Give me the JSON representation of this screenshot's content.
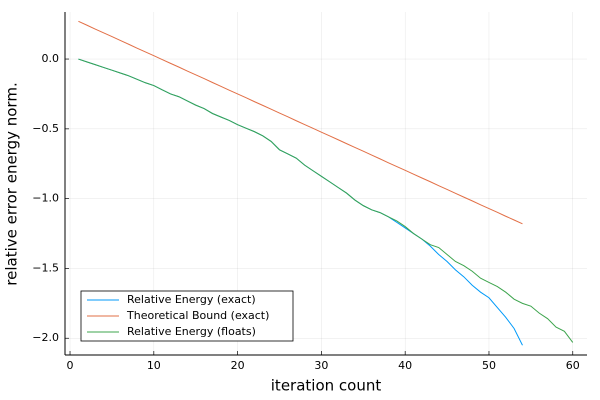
{
  "chart_data": {
    "type": "line",
    "x_label": "iteration count",
    "y_label": "relative error energy norm.",
    "x": [
      1,
      2,
      3,
      4,
      5,
      6,
      7,
      8,
      9,
      10,
      11,
      12,
      13,
      14,
      15,
      16,
      17,
      18,
      19,
      20,
      21,
      22,
      23,
      24,
      25,
      26,
      27,
      28,
      29,
      30,
      31,
      32,
      33,
      34,
      35,
      36,
      37,
      38,
      39,
      40,
      41,
      42,
      43,
      44,
      45,
      46,
      47,
      48,
      49,
      50,
      51,
      52,
      53,
      54,
      55,
      56,
      57,
      58,
      59,
      60
    ],
    "series": [
      {
        "name": "Relative Energy (exact)",
        "color": "#009af9",
        "values": [
          0,
          -0.02,
          -0.04,
          -0.06,
          -0.08,
          -0.1,
          -0.12,
          -0.145,
          -0.17,
          -0.19,
          -0.22,
          -0.25,
          -0.27,
          -0.3,
          -0.33,
          -0.355,
          -0.39,
          -0.415,
          -0.44,
          -0.47,
          -0.495,
          -0.52,
          -0.55,
          -0.59,
          -0.65,
          -0.68,
          -0.71,
          -0.76,
          -0.8,
          -0.84,
          -0.88,
          -0.92,
          -0.96,
          -1.01,
          -1.05,
          -1.08,
          -1.1,
          -1.13,
          -1.17,
          -1.21,
          -1.25,
          -1.29,
          -1.34,
          -1.4,
          -1.45,
          -1.51,
          -1.56,
          -1.62,
          -1.67,
          -1.71,
          -1.78,
          -1.85,
          -1.93,
          -2.05,
          null,
          null,
          null,
          null,
          null,
          null
        ]
      },
      {
        "name": "Theoretical Bound (exact)",
        "color": "#e26f46",
        "values": [
          0.27,
          0.243,
          0.215,
          0.188,
          0.161,
          0.133,
          0.106,
          0.078,
          0.051,
          0.024,
          -0.004,
          -0.031,
          -0.058,
          -0.086,
          -0.113,
          -0.14,
          -0.168,
          -0.195,
          -0.223,
          -0.25,
          -0.277,
          -0.305,
          -0.332,
          -0.359,
          -0.387,
          -0.414,
          -0.442,
          -0.469,
          -0.496,
          -0.524,
          -0.551,
          -0.578,
          -0.606,
          -0.633,
          -0.66,
          -0.688,
          -0.715,
          -0.743,
          -0.77,
          -0.797,
          -0.825,
          -0.852,
          -0.879,
          -0.907,
          -0.934,
          -0.962,
          -0.989,
          -1.016,
          -1.044,
          -1.071,
          -1.098,
          -1.126,
          -1.153,
          -1.18,
          null,
          null,
          null,
          null,
          null,
          null
        ]
      },
      {
        "name": "Relative Energy (floats)",
        "color": "#3da44d",
        "values": [
          0,
          -0.02,
          -0.04,
          -0.06,
          -0.08,
          -0.1,
          -0.12,
          -0.145,
          -0.17,
          -0.19,
          -0.22,
          -0.25,
          -0.27,
          -0.3,
          -0.33,
          -0.355,
          -0.39,
          -0.415,
          -0.44,
          -0.47,
          -0.495,
          -0.52,
          -0.55,
          -0.59,
          -0.65,
          -0.68,
          -0.71,
          -0.76,
          -0.8,
          -0.84,
          -0.88,
          -0.92,
          -0.96,
          -1.01,
          -1.05,
          -1.08,
          -1.1,
          -1.13,
          -1.16,
          -1.2,
          -1.25,
          -1.29,
          -1.33,
          -1.35,
          -1.4,
          -1.45,
          -1.48,
          -1.52,
          -1.57,
          -1.6,
          -1.63,
          -1.67,
          -1.72,
          -1.75,
          -1.77,
          -1.82,
          -1.86,
          -1.92,
          -1.95,
          -2.03
        ]
      }
    ],
    "xlim": [
      -0.6,
      61.7
    ],
    "ylim": [
      -2.12,
      0.337
    ],
    "xticks": [
      0,
      10,
      20,
      30,
      40,
      50,
      60
    ],
    "yticks": [
      {
        "value": 0,
        "label": "0.0"
      },
      {
        "value": -0.5,
        "label": "−0.5"
      },
      {
        "value": -1,
        "label": "−1.0"
      },
      {
        "value": -1.5,
        "label": "−1.5"
      },
      {
        "value": -2,
        "label": "−2.0"
      }
    ],
    "grid": true,
    "legend": "lower left"
  }
}
